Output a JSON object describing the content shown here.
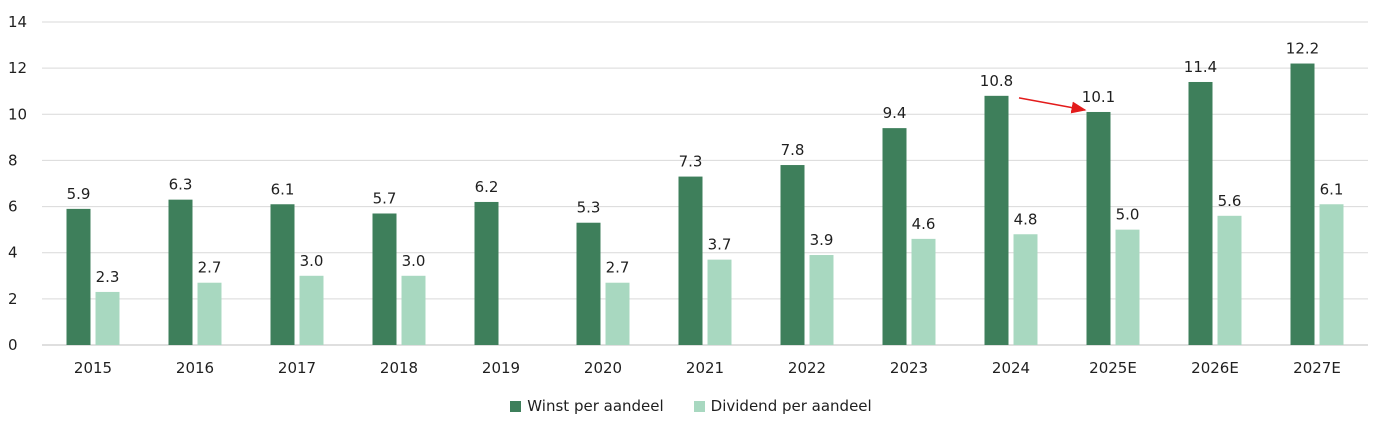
{
  "chart_data": {
    "type": "bar",
    "categories": [
      "2015",
      "2016",
      "2017",
      "2018",
      "2019",
      "2020",
      "2021",
      "2022",
      "2023",
      "2024",
      "2025E",
      "2026E",
      "2027E"
    ],
    "series": [
      {
        "name": "Winst per aandeel",
        "color": "#3e7f5b",
        "values": [
          5.9,
          6.3,
          6.1,
          5.7,
          6.2,
          5.3,
          7.3,
          7.8,
          9.4,
          10.8,
          10.1,
          11.4,
          12.2
        ],
        "labels": [
          "5.9",
          "6.3",
          "6.1",
          "5.7",
          "6.2",
          "5.3",
          "7.3",
          "7.8",
          "9.4",
          "10.8",
          "10.1",
          "11.4",
          "12.2"
        ]
      },
      {
        "name": "Dividend per aandeel",
        "color": "#a8d8c0",
        "values": [
          2.3,
          2.7,
          3.0,
          3.0,
          null,
          2.7,
          3.7,
          3.9,
          4.6,
          4.8,
          5.0,
          5.6,
          6.1
        ],
        "labels": [
          "2.3",
          "2.7",
          "3.0",
          "3.0",
          "",
          "2.7",
          "3.7",
          "3.9",
          "4.6",
          "4.8",
          "5.0",
          "5.6",
          "6.1"
        ]
      }
    ],
    "yticks": [
      "0",
      "2",
      "4",
      "6",
      "8",
      "10",
      "12",
      "14"
    ],
    "ylim": [
      0,
      14
    ],
    "grid": true,
    "legend_position": "bottom-center",
    "annotation": {
      "type": "arrow",
      "from_category": "2024",
      "to_category": "2025E",
      "color": "#e31b1b"
    }
  }
}
